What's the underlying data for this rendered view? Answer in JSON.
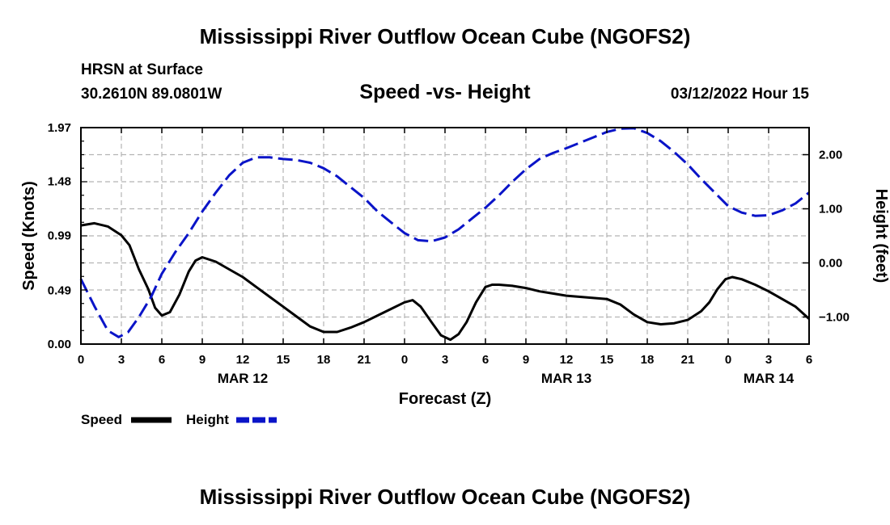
{
  "header": {
    "title": "Mississippi River Outflow Ocean Cube (NGOFS2)",
    "station": "HRSN at Surface",
    "coords": "30.2610N  89.0801W",
    "subtitle": "Speed -vs- Height",
    "datetime": "03/12/2022 Hour 15",
    "footer_title": "Mississippi River Outflow Ocean Cube (NGOFS2)"
  },
  "colors": {
    "speed": "#000000",
    "height": "#0a14c8",
    "grid": "#b4b4b4"
  },
  "chart_data": {
    "type": "line",
    "title": "Speed -vs- Height",
    "xlabel": "Forecast (Z)",
    "ylabel": "Speed (Knots)",
    "y2label": "Height (feet)",
    "xlim": [
      0,
      54
    ],
    "ylim": [
      0,
      1.97
    ],
    "y2lim": [
      -1.5,
      2.5
    ],
    "grid": true,
    "x_ticks": [
      0,
      3,
      6,
      9,
      12,
      15,
      18,
      21,
      24,
      27,
      30,
      33,
      36,
      39,
      42,
      45,
      48,
      51,
      54
    ],
    "x_tick_labels": [
      "0",
      "3",
      "6",
      "9",
      "12",
      "15",
      "18",
      "21",
      "0",
      "3",
      "6",
      "9",
      "12",
      "15",
      "18",
      "21",
      "0",
      "3",
      "6"
    ],
    "date_labels": [
      {
        "x": 12,
        "label": "MAR 12"
      },
      {
        "x": 36,
        "label": "MAR 13"
      },
      {
        "x": 51,
        "label": "MAR 14"
      }
    ],
    "y_ticks": [
      0,
      0.49,
      0.99,
      1.48,
      1.97
    ],
    "y_tick_labels": [
      "0.00",
      "0.49",
      "0.99",
      "1.48",
      "1.97"
    ],
    "y2_ticks": [
      -1,
      0,
      1,
      2
    ],
    "y2_tick_labels": [
      "−1.00",
      "0.00",
      "1.00",
      "2.00"
    ],
    "legend": [
      {
        "name": "Speed",
        "style": "solid"
      },
      {
        "name": "Height",
        "style": "dashed"
      }
    ],
    "series": [
      {
        "name": "Speed",
        "axis": "left",
        "style": "solid",
        "points": [
          [
            0,
            1.08
          ],
          [
            1,
            1.1
          ],
          [
            2,
            1.07
          ],
          [
            3,
            0.99
          ],
          [
            3.6,
            0.9
          ],
          [
            4.3,
            0.68
          ],
          [
            5,
            0.5
          ],
          [
            5.5,
            0.33
          ],
          [
            6,
            0.26
          ],
          [
            6.6,
            0.29
          ],
          [
            7.3,
            0.45
          ],
          [
            8,
            0.66
          ],
          [
            8.5,
            0.76
          ],
          [
            9,
            0.79
          ],
          [
            10,
            0.75
          ],
          [
            11,
            0.68
          ],
          [
            12,
            0.61
          ],
          [
            13,
            0.52
          ],
          [
            14,
            0.43
          ],
          [
            15,
            0.34
          ],
          [
            16,
            0.25
          ],
          [
            17,
            0.16
          ],
          [
            18,
            0.11
          ],
          [
            19,
            0.11
          ],
          [
            20,
            0.15
          ],
          [
            21,
            0.2
          ],
          [
            22,
            0.26
          ],
          [
            23,
            0.32
          ],
          [
            24,
            0.38
          ],
          [
            24.6,
            0.4
          ],
          [
            25.2,
            0.34
          ],
          [
            26,
            0.2
          ],
          [
            26.7,
            0.08
          ],
          [
            27.4,
            0.04
          ],
          [
            28,
            0.09
          ],
          [
            28.6,
            0.2
          ],
          [
            29.3,
            0.38
          ],
          [
            30,
            0.52
          ],
          [
            30.5,
            0.54
          ],
          [
            31,
            0.54
          ],
          [
            32,
            0.53
          ],
          [
            33,
            0.51
          ],
          [
            34,
            0.48
          ],
          [
            35,
            0.46
          ],
          [
            36,
            0.44
          ],
          [
            37,
            0.43
          ],
          [
            38,
            0.42
          ],
          [
            39,
            0.41
          ],
          [
            40,
            0.36
          ],
          [
            41,
            0.27
          ],
          [
            42,
            0.2
          ],
          [
            43,
            0.18
          ],
          [
            44,
            0.19
          ],
          [
            45,
            0.22
          ],
          [
            46,
            0.3
          ],
          [
            46.6,
            0.38
          ],
          [
            47.2,
            0.5
          ],
          [
            47.8,
            0.59
          ],
          [
            48.3,
            0.61
          ],
          [
            49,
            0.59
          ],
          [
            50,
            0.54
          ],
          [
            51,
            0.48
          ],
          [
            52,
            0.41
          ],
          [
            53,
            0.34
          ],
          [
            54,
            0.23
          ]
        ]
      },
      {
        "name": "Height",
        "axis": "right",
        "style": "dashed",
        "points": [
          [
            0,
            -0.3
          ],
          [
            1,
            -0.8
          ],
          [
            2,
            -1.25
          ],
          [
            2.8,
            -1.37
          ],
          [
            3.5,
            -1.28
          ],
          [
            4.3,
            -1.0
          ],
          [
            5.2,
            -0.63
          ],
          [
            6,
            -0.2
          ],
          [
            7,
            0.2
          ],
          [
            8,
            0.55
          ],
          [
            9,
            0.95
          ],
          [
            10,
            1.3
          ],
          [
            11,
            1.62
          ],
          [
            12,
            1.85
          ],
          [
            13,
            1.95
          ],
          [
            14,
            1.95
          ],
          [
            15,
            1.92
          ],
          [
            16,
            1.9
          ],
          [
            17,
            1.85
          ],
          [
            18,
            1.75
          ],
          [
            19,
            1.6
          ],
          [
            20,
            1.4
          ],
          [
            21,
            1.2
          ],
          [
            22,
            0.95
          ],
          [
            23,
            0.75
          ],
          [
            24,
            0.55
          ],
          [
            25,
            0.42
          ],
          [
            26,
            0.4
          ],
          [
            27,
            0.47
          ],
          [
            28,
            0.62
          ],
          [
            29,
            0.82
          ],
          [
            30,
            1.02
          ],
          [
            31,
            1.25
          ],
          [
            32,
            1.5
          ],
          [
            33,
            1.73
          ],
          [
            34,
            1.92
          ],
          [
            35,
            2.03
          ],
          [
            36,
            2.12
          ],
          [
            37,
            2.22
          ],
          [
            38,
            2.32
          ],
          [
            39,
            2.42
          ],
          [
            40,
            2.48
          ],
          [
            41,
            2.49
          ],
          [
            42,
            2.4
          ],
          [
            43,
            2.25
          ],
          [
            44,
            2.05
          ],
          [
            45,
            1.82
          ],
          [
            46,
            1.55
          ],
          [
            47,
            1.3
          ],
          [
            48,
            1.05
          ],
          [
            49,
            0.93
          ],
          [
            50,
            0.87
          ],
          [
            51,
            0.88
          ],
          [
            52,
            0.97
          ],
          [
            53,
            1.1
          ],
          [
            54,
            1.3
          ]
        ]
      }
    ]
  }
}
